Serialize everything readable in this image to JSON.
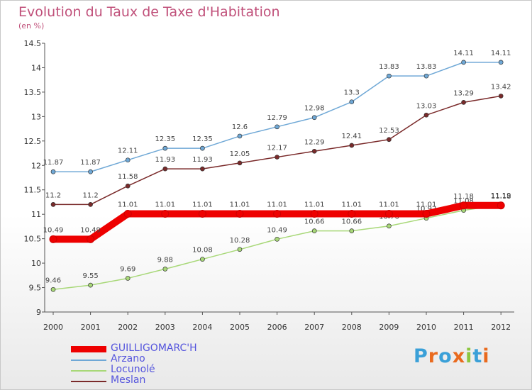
{
  "title": "Evolution du Taux de Taxe d'Habitation",
  "subtitle": "(en %)",
  "logo": {
    "text": "Proxiti",
    "colors": [
      "#3aa0d8",
      "#e96a1e",
      "#3aa0d8",
      "#e96a1e",
      "#8dc63f",
      "#3aa0d8",
      "#e96a1e"
    ]
  },
  "chart_data": {
    "type": "line",
    "title": "Evolution du Taux de Taxe d'Habitation",
    "ylabel": "(en %)",
    "xlabel": "",
    "x": [
      "2000",
      "2001",
      "2002",
      "2003",
      "2004",
      "2005",
      "2006",
      "2007",
      "2008",
      "2009",
      "2010",
      "2011",
      "2012"
    ],
    "ylim": [
      9,
      14.5
    ],
    "yticks": [
      "9",
      "9.5",
      "10",
      "10.5",
      "11",
      "11.5",
      "12",
      "12.5",
      "13",
      "13.5",
      "14",
      "14.5"
    ],
    "grid": false,
    "legend_position": "bottom-left",
    "series": [
      {
        "name": "Arzano",
        "color": "#6fa8d6",
        "values": [
          11.87,
          11.87,
          12.11,
          12.35,
          12.35,
          12.6,
          12.79,
          12.98,
          13.3,
          13.83,
          13.83,
          14.11,
          14.11
        ],
        "labels": [
          "11.87",
          "11.87",
          "12.11",
          "12.35",
          "12.35",
          "12.6",
          "12.79",
          "12.98",
          "13.3",
          "13.83",
          "13.83",
          "14.11",
          "14.11"
        ]
      },
      {
        "name": "Meslan",
        "color": "#7a2a2a",
        "values": [
          11.2,
          11.2,
          11.58,
          11.93,
          11.93,
          12.05,
          12.17,
          12.29,
          12.41,
          12.53,
          13.03,
          13.29,
          13.42
        ],
        "labels": [
          "11.2",
          "11.2",
          "11.58",
          "11.93",
          "11.93",
          "12.05",
          "12.17",
          "12.29",
          "12.41",
          "12.53",
          "13.03",
          "13.29",
          "13.42"
        ]
      },
      {
        "name": "Locunolé",
        "color": "#a8d878",
        "values": [
          9.46,
          9.55,
          9.69,
          9.88,
          10.08,
          10.28,
          10.49,
          10.66,
          10.66,
          10.76,
          10.92,
          11.08,
          11.19
        ],
        "labels": [
          "9.46",
          "9.55",
          "9.69",
          "9.88",
          "10.08",
          "10.28",
          "10.49",
          "10.66",
          "10.66",
          "10.76",
          "10.92",
          "11.08",
          "11.19"
        ]
      },
      {
        "name": "GUILLIGOMARC'H",
        "color": "#ee0000",
        "values": [
          10.49,
          10.49,
          11.01,
          11.01,
          11.01,
          11.01,
          11.01,
          11.01,
          11.01,
          11.01,
          11.01,
          11.18,
          11.18
        ],
        "labels": [
          "10.49",
          "10.49",
          "11.01",
          "11.01",
          "11.01",
          "11.01",
          "11.01",
          "11.01",
          "11.01",
          "11.01",
          "11.01",
          "11.18",
          "11.18"
        ]
      }
    ],
    "legend": [
      "GUILLIGOMARC'H",
      "Arzano",
      "Locunolé",
      "Meslan"
    ]
  }
}
